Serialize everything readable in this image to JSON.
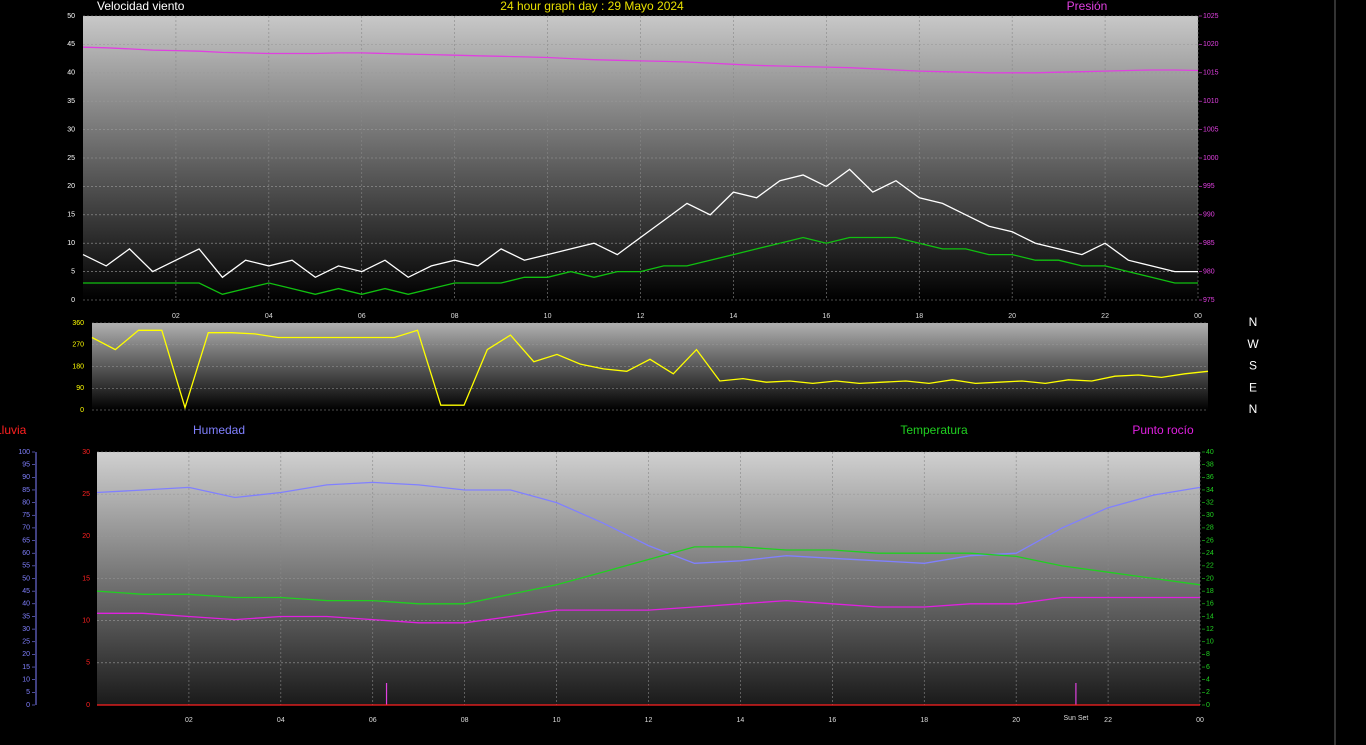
{
  "chart_data": [
    {
      "type": "line",
      "title": "24 hour graph day : 29 Mayo 2024",
      "ylabel": "Velocidad viento",
      "y2label": "Presión",
      "x": [
        0,
        0.5,
        1,
        1.5,
        2,
        2.5,
        3,
        3.5,
        4,
        4.5,
        5,
        5.5,
        6,
        6.5,
        7,
        7.5,
        8,
        8.5,
        9,
        9.5,
        10,
        10.5,
        11,
        11.5,
        12,
        12.5,
        13,
        13.5,
        14,
        14.5,
        15,
        15.5,
        16,
        16.5,
        17,
        17.5,
        18,
        18.5,
        19,
        19.5,
        20,
        20.5,
        21,
        21.5,
        22,
        22.5,
        23,
        23.5,
        24
      ],
      "series": [
        {
          "color": "#ffffff",
          "values": [
            8,
            6,
            9,
            5,
            7,
            9,
            4,
            7,
            6,
            7,
            4,
            6,
            5,
            7,
            4,
            6,
            7,
            6,
            9,
            7,
            8,
            9,
            10,
            8,
            11,
            14,
            17,
            15,
            19,
            18,
            21,
            22,
            20,
            23,
            19,
            21,
            18,
            17,
            15,
            13,
            12,
            10,
            9,
            8,
            10,
            7,
            6,
            5,
            5
          ]
        },
        {
          "color": "#10c010",
          "values": [
            3,
            3,
            3,
            3,
            3,
            3,
            1,
            2,
            3,
            2,
            1,
            2,
            1,
            2,
            1,
            2,
            3,
            3,
            3,
            4,
            4,
            5,
            4,
            5,
            5,
            6,
            6,
            7,
            8,
            9,
            10,
            11,
            10,
            11,
            11,
            11,
            10,
            9,
            9,
            8,
            8,
            7,
            7,
            6,
            6,
            5,
            4,
            3,
            3
          ]
        },
        {
          "color": "#e040e0",
          "axis": "y2",
          "values": [
            1019.5,
            1019.4,
            1019.2,
            1019.0,
            1018.9,
            1018.8,
            1018.6,
            1018.5,
            1018.4,
            1018.4,
            1018.4,
            1018.5,
            1018.5,
            1018.4,
            1018.3,
            1018.2,
            1018.1,
            1018.0,
            1017.9,
            1017.8,
            1017.7,
            1017.5,
            1017.3,
            1017.2,
            1017.1,
            1017.0,
            1016.9,
            1016.7,
            1016.5,
            1016.3,
            1016.2,
            1016.1,
            1016.0,
            1015.9,
            1015.7,
            1015.5,
            1015.3,
            1015.2,
            1015.1,
            1015.0,
            1015.0,
            1015.0,
            1015.1,
            1015.2,
            1015.3,
            1015.4,
            1015.5,
            1015.5,
            1015.4
          ]
        }
      ],
      "xlim": [
        0,
        24
      ],
      "xticks": [
        {
          "value": 2,
          "label": "02"
        },
        {
          "value": 4,
          "label": "04"
        },
        {
          "value": 6,
          "label": "06"
        },
        {
          "value": 8,
          "label": "08"
        },
        10,
        12,
        14,
        16,
        18,
        20,
        22,
        {
          "value": 24,
          "label": "00"
        }
      ],
      "ylim": [
        0,
        50
      ],
      "yticks": [
        0,
        5,
        10,
        15,
        20,
        25,
        30,
        35,
        40,
        45,
        50
      ],
      "y2lim": [
        975,
        1025
      ],
      "y2ticks": [
        975,
        980,
        985,
        990,
        995,
        1000,
        1005,
        1010,
        1015,
        1020,
        1025
      ],
      "grid": true
    },
    {
      "type": "line",
      "x": [
        0,
        0.5,
        1,
        1.5,
        2,
        2.5,
        3,
        3.5,
        4,
        4.5,
        5,
        5.5,
        6,
        6.5,
        7,
        7.5,
        8,
        8.5,
        9,
        9.5,
        10,
        10.5,
        11,
        11.5,
        12,
        12.5,
        13,
        13.5,
        14,
        14.5,
        15,
        15.5,
        16,
        16.5,
        17,
        17.5,
        18,
        18.5,
        19,
        19.5,
        20,
        20.5,
        21,
        21.5,
        22,
        22.5,
        23,
        23.5,
        24
      ],
      "series": [
        {
          "color": "#ffff00",
          "values": [
            300,
            250,
            330,
            330,
            10,
            320,
            320,
            315,
            300,
            300,
            300,
            300,
            300,
            300,
            330,
            20,
            20,
            250,
            310,
            200,
            230,
            190,
            170,
            160,
            210,
            150,
            250,
            120,
            130,
            115,
            120,
            110,
            120,
            110,
            115,
            120,
            110,
            125,
            110,
            115,
            120,
            110,
            125,
            120,
            140,
            145,
            135,
            150,
            160
          ]
        }
      ],
      "xlim": [
        0,
        24
      ],
      "ylim": [
        0,
        360
      ],
      "yticks": [
        0,
        90,
        180,
        270,
        360
      ],
      "direction_labels": [
        "N",
        "E",
        "S",
        "W",
        "N"
      ],
      "grid": true
    },
    {
      "type": "line",
      "x": [
        0,
        1,
        2,
        3,
        4,
        5,
        6,
        7,
        8,
        9,
        10,
        11,
        12,
        13,
        14,
        15,
        16,
        17,
        18,
        19,
        20,
        21,
        22,
        23,
        24
      ],
      "series": [
        {
          "name": "Lluvia",
          "color": "#ff2020",
          "values": [
            0,
            0,
            0,
            0,
            0,
            0,
            0,
            0,
            0,
            0,
            0,
            0,
            0,
            0,
            0,
            0,
            0,
            0,
            0,
            0,
            0,
            0,
            0,
            0,
            0
          ]
        },
        {
          "name": "Humedad",
          "color": "#8080ff",
          "axis": "y3",
          "values": [
            84,
            85,
            86,
            82,
            84,
            87,
            88,
            87,
            85,
            85,
            80,
            72,
            63,
            56,
            57,
            59,
            58,
            57,
            56,
            59,
            60,
            70,
            78,
            83,
            86
          ]
        },
        {
          "name": "Temperatura",
          "color": "#20d020",
          "axis": "y2",
          "values": [
            18,
            17.5,
            17.5,
            17,
            17,
            16.5,
            16.5,
            16,
            16,
            17.5,
            19,
            21,
            23,
            25,
            25,
            24.5,
            24.5,
            24,
            24,
            24,
            23.5,
            22,
            21,
            20,
            19
          ]
        },
        {
          "name": "Punto rocío",
          "color": "#e020e0",
          "axis": "y2",
          "values": [
            14.5,
            14.5,
            14,
            13.5,
            14,
            14,
            13.5,
            13,
            13,
            14,
            15,
            15,
            15,
            15.5,
            16,
            16.5,
            16,
            15.5,
            15.5,
            16,
            16,
            17,
            17,
            17,
            17
          ]
        }
      ],
      "xlim": [
        0,
        24
      ],
      "xticks": [
        {
          "value": 2,
          "label": "02"
        },
        {
          "value": 4,
          "label": "04"
        },
        {
          "value": 6,
          "label": "06"
        },
        {
          "value": 8,
          "label": "08"
        },
        10,
        12,
        14,
        16,
        18,
        20,
        22,
        {
          "value": 24,
          "label": "00"
        }
      ],
      "ylim": [
        0,
        30
      ],
      "yticks": [
        0,
        5,
        10,
        15,
        20,
        25,
        30
      ],
      "y2lim": [
        0,
        40
      ],
      "y2ticks": [
        0,
        2,
        4,
        6,
        8,
        10,
        12,
        14,
        16,
        18,
        20,
        22,
        24,
        26,
        28,
        30,
        32,
        34,
        36,
        38,
        40
      ],
      "y3lim": [
        0,
        100
      ],
      "y3ticks": [
        0,
        5,
        10,
        15,
        20,
        25,
        30,
        35,
        40,
        45,
        50,
        55,
        60,
        65,
        70,
        75,
        80,
        85,
        90,
        95,
        100
      ],
      "markers": [
        6.3,
        21.3
      ],
      "annotations": [
        {
          "text": "Sun Set",
          "x": 21.3
        }
      ],
      "grid": true
    }
  ]
}
